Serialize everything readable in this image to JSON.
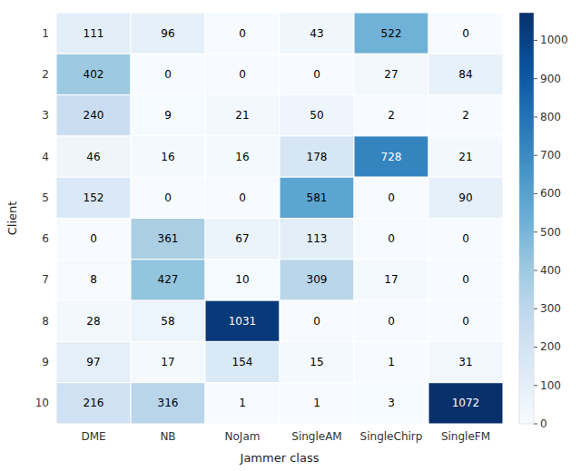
{
  "chart_data": {
    "type": "heatmap",
    "xlabel": "Jammer class",
    "ylabel": "Client",
    "categories": [
      "DME",
      "NB",
      "NoJam",
      "SingleAM",
      "SingleChirp",
      "SingleFM"
    ],
    "y_categories": [
      "1",
      "2",
      "3",
      "4",
      "5",
      "6",
      "7",
      "8",
      "9",
      "10"
    ],
    "values": [
      [
        111,
        96,
        0,
        43,
        522,
        0
      ],
      [
        402,
        0,
        0,
        0,
        27,
        84
      ],
      [
        240,
        9,
        21,
        50,
        2,
        2
      ],
      [
        46,
        16,
        16,
        178,
        728,
        21
      ],
      [
        152,
        0,
        0,
        581,
        0,
        90
      ],
      [
        0,
        361,
        67,
        113,
        0,
        0
      ],
      [
        8,
        427,
        10,
        309,
        17,
        0
      ],
      [
        28,
        58,
        1031,
        0,
        0,
        0
      ],
      [
        97,
        17,
        154,
        15,
        1,
        31
      ],
      [
        216,
        316,
        1,
        1,
        3,
        1072
      ]
    ],
    "color_range": [
      0,
      1072
    ],
    "color_ticks": [
      0,
      100,
      200,
      300,
      400,
      500,
      600,
      700,
      800,
      900,
      1000
    ],
    "data_labels": true,
    "grid": false
  }
}
